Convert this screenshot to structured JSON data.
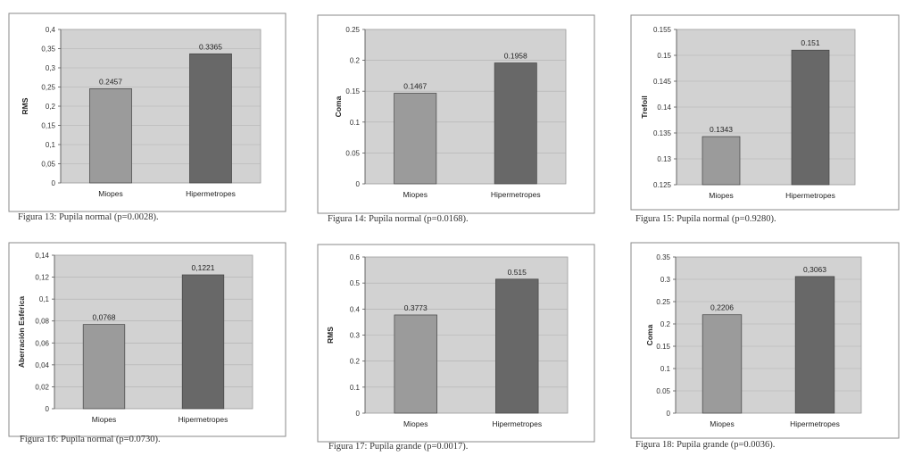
{
  "colors": {
    "plot_bg": "#d2d2d2",
    "frame": "#8a8a8a",
    "bar_light": "#9b9b9b",
    "bar_dark": "#686868",
    "grid": "#b0b0b0"
  },
  "chart_data": [
    {
      "type": "bar",
      "categories": [
        "Miopes",
        "Hipermetropes"
      ],
      "values": [
        0.2457,
        0.3365
      ],
      "value_labels": [
        "0.2457",
        "0.3365"
      ],
      "ylabel": "RMS",
      "ylim": [
        0,
        0.4
      ],
      "yticks": [
        0,
        0.05,
        0.1,
        0.15,
        0.2,
        0.25,
        0.3,
        0.35,
        0.4
      ],
      "ytick_labels": [
        "0",
        "0,05",
        "0,1",
        "0,15",
        "0,2",
        "0,25",
        "0,3",
        "0,35",
        "0,4"
      ],
      "grid": true,
      "legend": "none",
      "caption": "Figura 13: Pupila normal (p=0.0028)."
    },
    {
      "type": "bar",
      "categories": [
        "Miopes",
        "Hipermetropes"
      ],
      "values": [
        0.1467,
        0.1958
      ],
      "value_labels": [
        "0.1467",
        "0.1958"
      ],
      "ylabel": "Coma",
      "ylim": [
        0,
        0.25
      ],
      "yticks": [
        0,
        0.05,
        0.1,
        0.15,
        0.2,
        0.25
      ],
      "ytick_labels": [
        "0",
        "0.05",
        "0.1",
        "0.15",
        "0.2",
        "0.25"
      ],
      "grid": true,
      "legend": "none",
      "caption": "Figura 14: Pupila normal (p=0.0168)."
    },
    {
      "type": "bar",
      "categories": [
        "Miopes",
        "Hipermetropes"
      ],
      "values": [
        0.1343,
        0.151
      ],
      "value_labels": [
        "0.1343",
        "0.151"
      ],
      "ylabel": "Trefoil",
      "ylim": [
        0.125,
        0.155
      ],
      "yticks": [
        0.125,
        0.13,
        0.135,
        0.14,
        0.145,
        0.15,
        0.155
      ],
      "ytick_labels": [
        "0.125",
        "0.13",
        "0.135",
        "0.14",
        "0.145",
        "0.15",
        "0.155"
      ],
      "grid": true,
      "legend": "none",
      "caption": "Figura 15: Pupila normal (p=0.9280)."
    },
    {
      "type": "bar",
      "categories": [
        "Miopes",
        "Hipermetropes"
      ],
      "values": [
        0.0768,
        0.1221
      ],
      "value_labels": [
        "0,0768",
        "0,1221"
      ],
      "ylabel": "Aberración Esférica",
      "ylim": [
        0,
        0.14
      ],
      "yticks": [
        0,
        0.02,
        0.04,
        0.06,
        0.08,
        0.1,
        0.12,
        0.14
      ],
      "ytick_labels": [
        "0",
        "0,02",
        "0,04",
        "0,06",
        "0,08",
        "0,1",
        "0,12",
        "0,14"
      ],
      "grid": true,
      "legend": "none",
      "caption": "Figura 16: Pupila normal (p=0.0730)."
    },
    {
      "type": "bar",
      "categories": [
        "Miopes",
        "Hipermetropes"
      ],
      "values": [
        0.3773,
        0.515
      ],
      "value_labels": [
        "0.3773",
        "0.515"
      ],
      "ylabel": "RMS",
      "ylim": [
        0,
        0.6
      ],
      "yticks": [
        0,
        0.1,
        0.2,
        0.3,
        0.4,
        0.5,
        0.6
      ],
      "ytick_labels": [
        "0",
        "0.1",
        "0.2",
        "0.3",
        "0.4",
        "0.5",
        "0.6"
      ],
      "grid": true,
      "legend": "none",
      "caption": "Figura 17: Pupila grande (p=0.0017)."
    },
    {
      "type": "bar",
      "categories": [
        "Miopes",
        "Hipermetropes"
      ],
      "values": [
        0.2206,
        0.3063
      ],
      "value_labels": [
        "0,2206",
        "0,3063"
      ],
      "ylabel": "Coma",
      "ylim": [
        0,
        0.35
      ],
      "yticks": [
        0,
        0.05,
        0.1,
        0.15,
        0.2,
        0.25,
        0.3,
        0.35
      ],
      "ytick_labels": [
        "0",
        "0.05",
        "0.1",
        "0.15",
        "0.2",
        "0.25",
        "0.3",
        "0.35"
      ],
      "grid": true,
      "legend": "none",
      "caption": "Figura 18: Pupila grande (p=0.0036)."
    }
  ]
}
